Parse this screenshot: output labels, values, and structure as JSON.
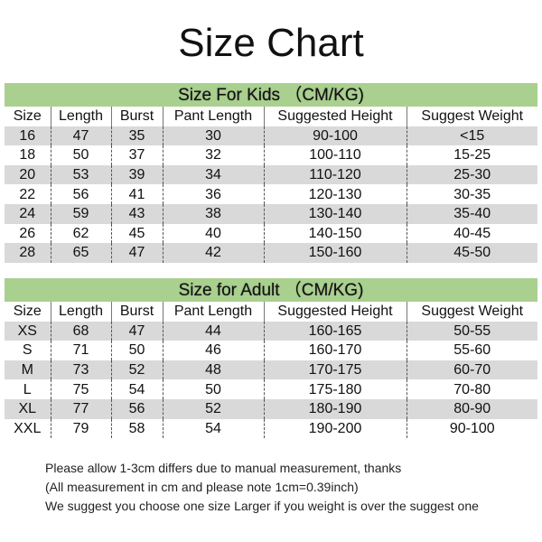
{
  "title": "Size Chart",
  "columns": [
    "Size",
    "Length",
    "Burst",
    "Pant Length",
    "Suggested Height",
    "Suggest Weight"
  ],
  "kids": {
    "caption": "Size For Kids （CM/KG)",
    "rows": [
      [
        "16",
        "47",
        "35",
        "30",
        "90-100",
        "<15"
      ],
      [
        "18",
        "50",
        "37",
        "32",
        "100-110",
        "15-25"
      ],
      [
        "20",
        "53",
        "39",
        "34",
        "110-120",
        "25-30"
      ],
      [
        "22",
        "56",
        "41",
        "36",
        "120-130",
        "30-35"
      ],
      [
        "24",
        "59",
        "43",
        "38",
        "130-140",
        "35-40"
      ],
      [
        "26",
        "62",
        "45",
        "40",
        "140-150",
        "40-45"
      ],
      [
        "28",
        "65",
        "47",
        "42",
        "150-160",
        "45-50"
      ]
    ]
  },
  "adult": {
    "caption": "Size for Adult （CM/KG)",
    "rows": [
      [
        "XS",
        "68",
        "47",
        "44",
        "160-165",
        "50-55"
      ],
      [
        "S",
        "71",
        "50",
        "46",
        "160-170",
        "55-60"
      ],
      [
        "M",
        "73",
        "52",
        "48",
        "170-175",
        "60-70"
      ],
      [
        "L",
        "75",
        "54",
        "50",
        "175-180",
        "70-80"
      ],
      [
        "XL",
        "77",
        "56",
        "52",
        "180-190",
        "80-90"
      ],
      [
        "XXL",
        "79",
        "58",
        "54",
        "190-200",
        "90-100"
      ]
    ]
  },
  "notes": [
    "Please allow 1-3cm differs due to manual measurement, thanks",
    "(All measurement in cm and please note 1cm=0.39inch)",
    "We suggest you choose one size Larger if you weight is over the suggest one"
  ],
  "colors": {
    "header_green": "#a9d08e",
    "row_gray": "#d9d9d9"
  }
}
